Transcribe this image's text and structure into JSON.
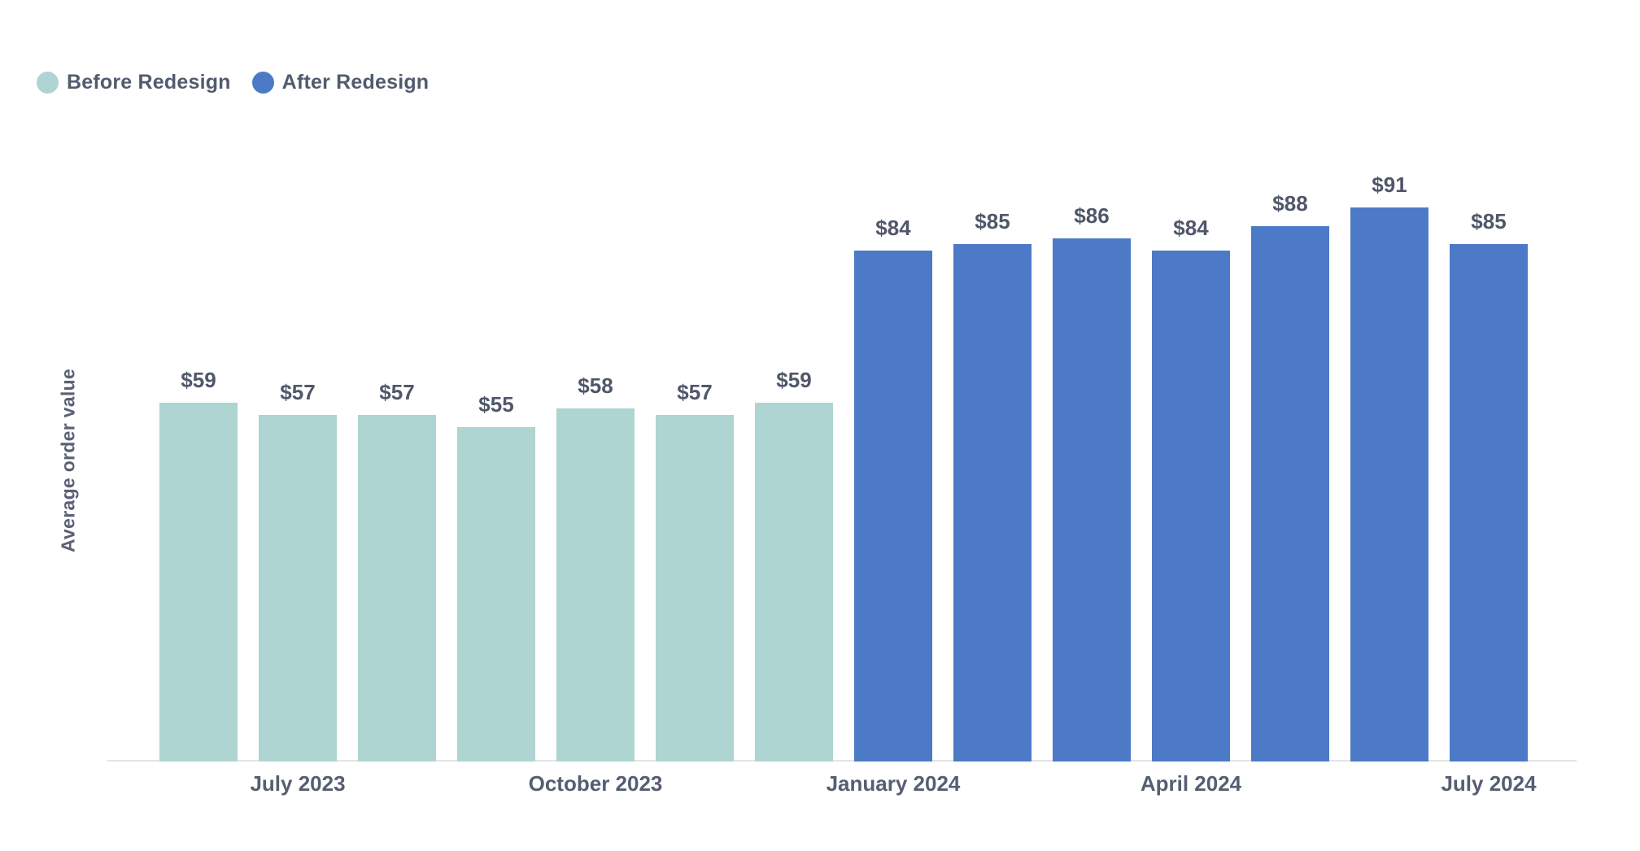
{
  "legend": {
    "items": [
      {
        "label": "Before Redesign",
        "color": "#aed5d1"
      },
      {
        "label": "After Redesign",
        "color": "#4c7ac7"
      }
    ]
  },
  "colors": {
    "before_series": "#aed5d1",
    "after_series": "#4c7ac7",
    "text": "#525b6e",
    "axis_line": "#e3e4e6",
    "background": "#ffffff"
  },
  "chart_data": {
    "type": "bar",
    "title": "",
    "xlabel": "",
    "ylabel": "Average order value",
    "ylim": [
      0,
      105
    ],
    "grid": false,
    "legend_position": "top-left",
    "x_tick_labels": [
      "July 2023",
      "October 2023",
      "January 2024",
      "April 2024",
      "July 2024"
    ],
    "series": [
      {
        "name": "Before Redesign",
        "color": "#aed5d1",
        "values": [
          59,
          57,
          57,
          55,
          58,
          57,
          59
        ]
      },
      {
        "name": "After Redesign",
        "color": "#4c7ac7",
        "values": [
          84,
          85,
          86,
          84,
          88,
          91,
          85
        ]
      }
    ],
    "bars": [
      {
        "series": 0,
        "value": 59,
        "label": "$59",
        "tick": ""
      },
      {
        "series": 0,
        "value": 57,
        "label": "$57",
        "tick": "July 2023"
      },
      {
        "series": 0,
        "value": 57,
        "label": "$57",
        "tick": ""
      },
      {
        "series": 0,
        "value": 55,
        "label": "$55",
        "tick": ""
      },
      {
        "series": 0,
        "value": 58,
        "label": "$58",
        "tick": "October 2023"
      },
      {
        "series": 0,
        "value": 57,
        "label": "$57",
        "tick": ""
      },
      {
        "series": 0,
        "value": 59,
        "label": "$59",
        "tick": ""
      },
      {
        "series": 1,
        "value": 84,
        "label": "$84",
        "tick": "January 2024"
      },
      {
        "series": 1,
        "value": 85,
        "label": "$85",
        "tick": ""
      },
      {
        "series": 1,
        "value": 86,
        "label": "$86",
        "tick": ""
      },
      {
        "series": 1,
        "value": 84,
        "label": "$84",
        "tick": "April 2024"
      },
      {
        "series": 1,
        "value": 88,
        "label": "$88",
        "tick": ""
      },
      {
        "series": 1,
        "value": 91,
        "label": "$91",
        "tick": ""
      },
      {
        "series": 1,
        "value": 85,
        "label": "$85",
        "tick": "July 2024"
      }
    ]
  }
}
